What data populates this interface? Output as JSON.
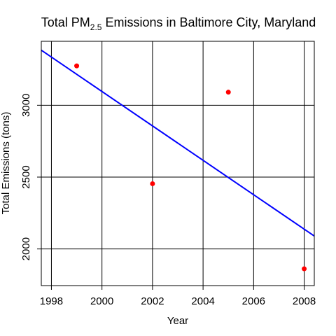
{
  "chart_data": {
    "type": "scatter",
    "title_main": "Total PM",
    "title_sub": "2.5",
    "title_rest": " Emissions in Baltimore City, Maryland",
    "xlabel": "Year",
    "ylabel": "Total Emissions (tons)",
    "xlim": [
      1997.6,
      2008.4
    ],
    "ylim": [
      1745,
      3445
    ],
    "x_ticks": [
      1998,
      2000,
      2002,
      2004,
      2006,
      2008
    ],
    "y_ticks": [
      2000,
      2500,
      3000
    ],
    "grid": true,
    "points": [
      {
        "x": 1999,
        "y": 3274
      },
      {
        "x": 2002,
        "y": 2454
      },
      {
        "x": 2005,
        "y": 3091
      },
      {
        "x": 2008,
        "y": 1862
      }
    ],
    "trend_line": {
      "x": [
        1997.6,
        2008.4
      ],
      "y": [
        3383,
        2090
      ]
    },
    "colors": {
      "points": "#ff0000",
      "trend": "#0000ff",
      "grid": "#000000"
    }
  }
}
